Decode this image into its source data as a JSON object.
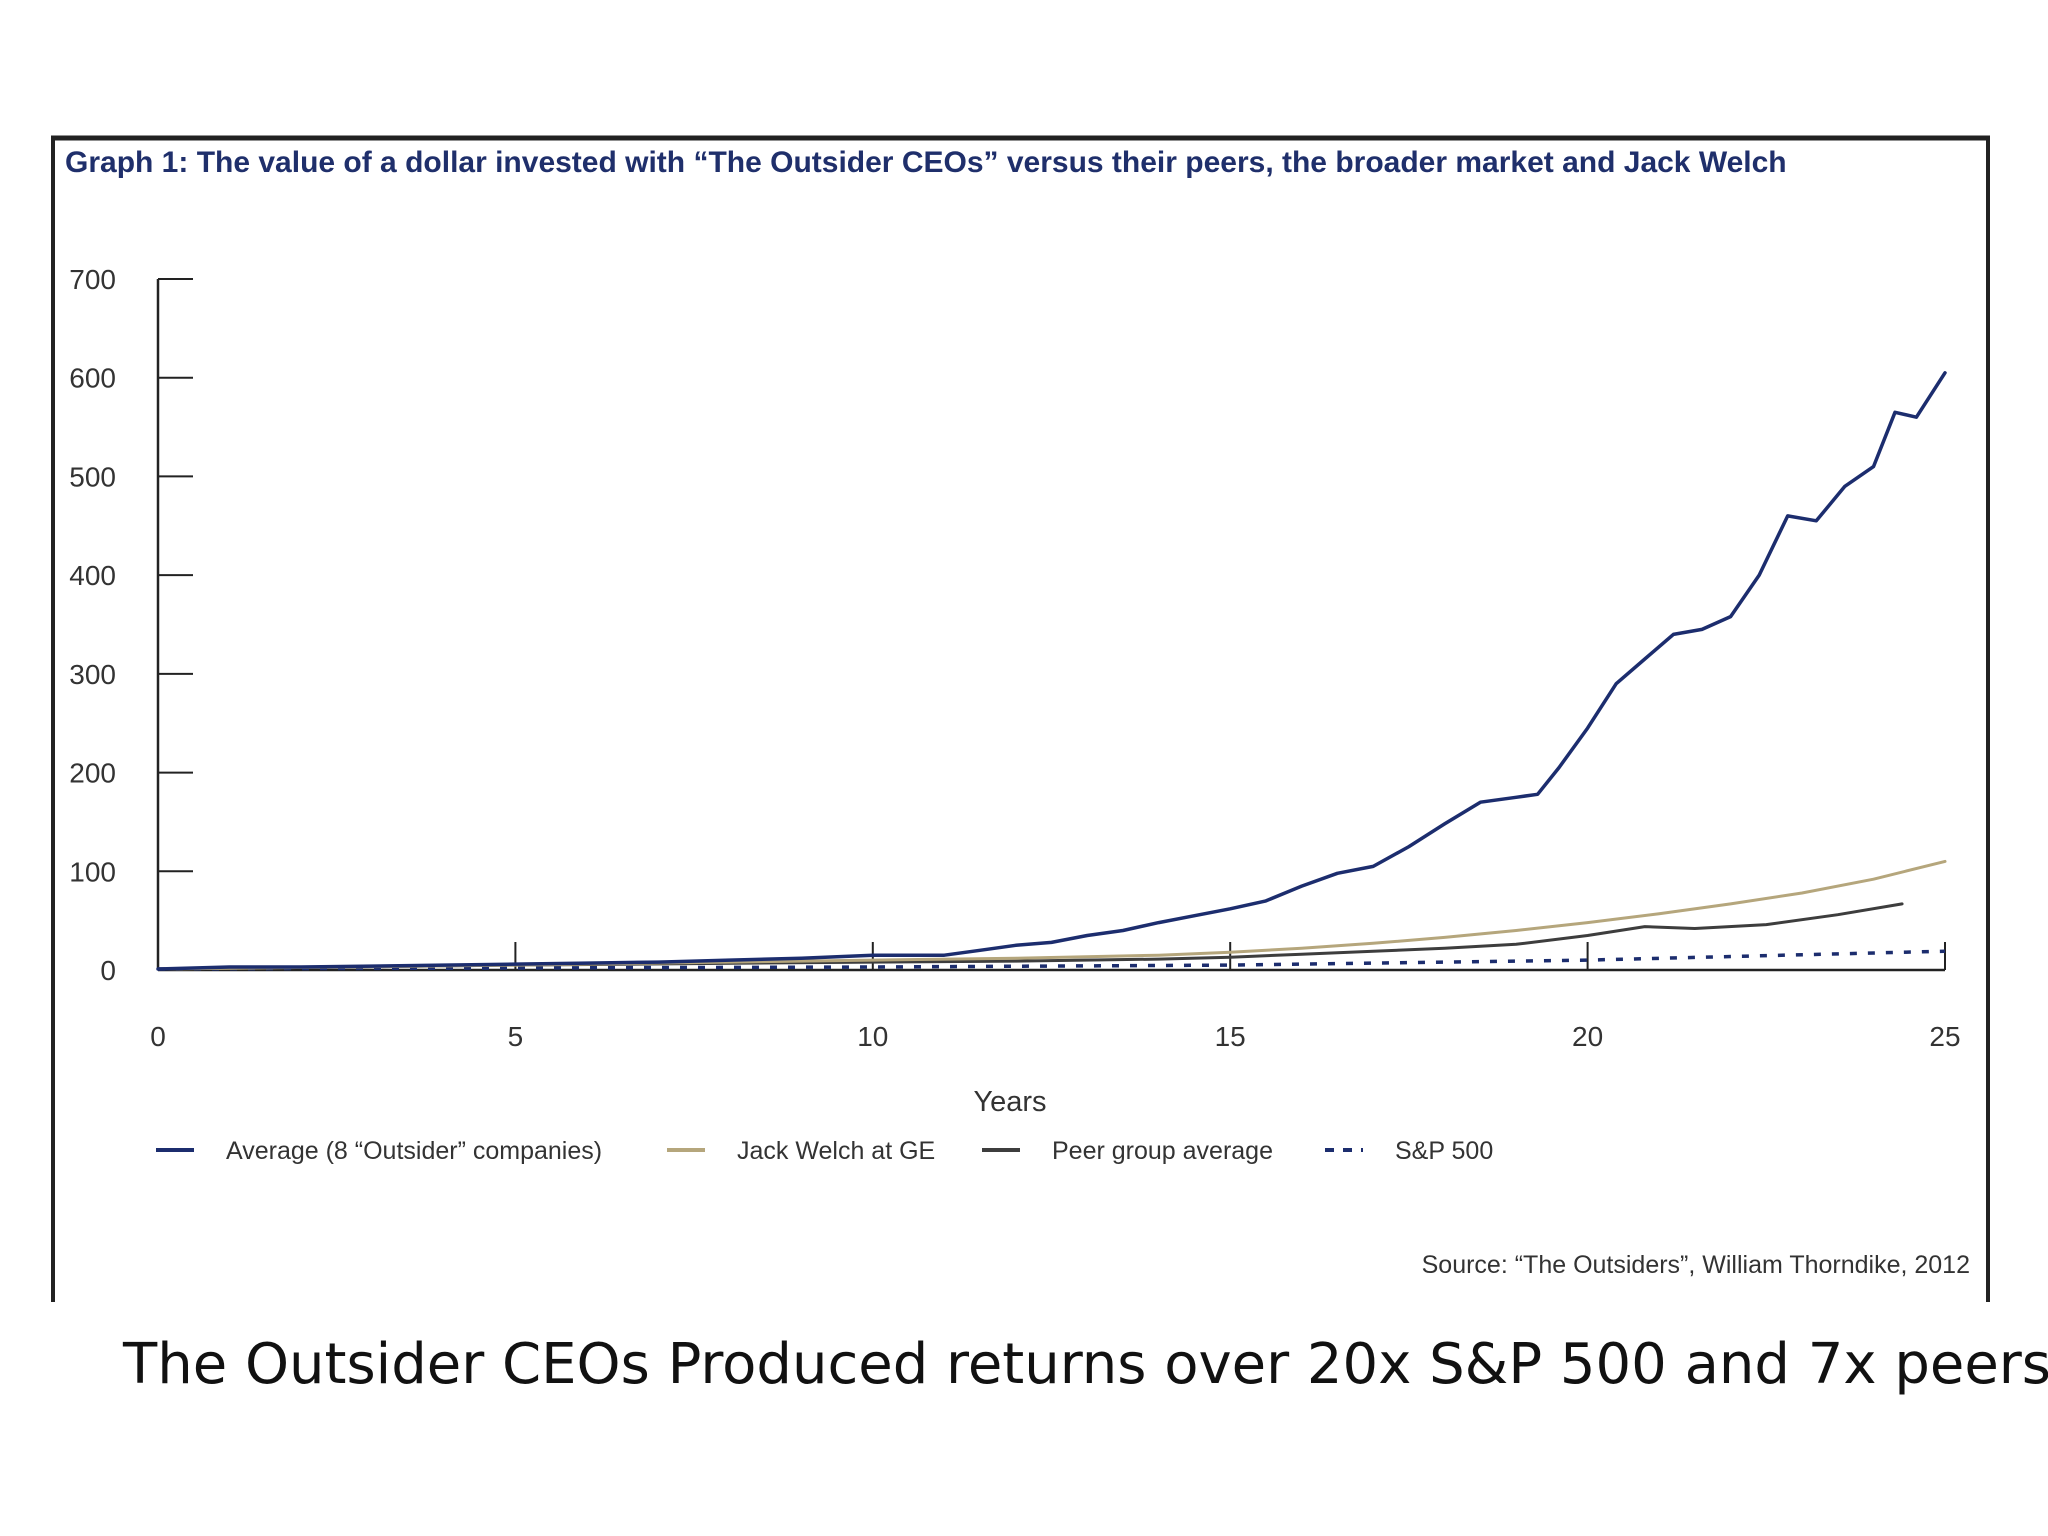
{
  "colors": {
    "outsider": "#1c2d6e",
    "welch": "#b5a67c",
    "peer": "#3d3d3d",
    "sp500": "#1c2d6e",
    "title": "#1f2f6b",
    "axis": "#222222"
  },
  "caption": "The Outsider CEOs Produced returns over 20x S&P 500 and 7x peers",
  "chart_data": {
    "type": "line",
    "title": "Graph 1: The value of a dollar invested with “The Outsider CEOs” versus their peers, the broader market and Jack Welch",
    "xlabel": "Years",
    "ylabel": "",
    "xlim": [
      0,
      25
    ],
    "ylim": [
      0,
      700
    ],
    "xticks": [
      "0",
      "5",
      "10",
      "15",
      "20",
      "25"
    ],
    "yticks": [
      "0",
      "100",
      "200",
      "300",
      "400",
      "500",
      "600",
      "700"
    ],
    "grid": false,
    "legend_position": "bottom",
    "source": "Source: “The Outsiders”, William Thorndike, 2012",
    "series": [
      {
        "name": "Average (8 “Outsider” companies)",
        "style": "solid",
        "x": [
          0,
          1,
          2,
          3,
          4,
          5,
          6,
          7,
          8,
          9,
          10,
          11,
          11.5,
          12,
          12.5,
          13,
          13.5,
          14,
          14.5,
          15,
          15.5,
          16,
          16.5,
          17,
          17.5,
          18,
          18.5,
          19,
          19.3,
          19.6,
          20,
          20.4,
          20.8,
          21.2,
          21.6,
          22,
          22.4,
          22.8,
          23.2,
          23.6,
          24,
          24.3,
          24.6,
          25
        ],
        "values": [
          1,
          3,
          3,
          4,
          5,
          6,
          7,
          8,
          10,
          12,
          15,
          15,
          20,
          25,
          28,
          35,
          40,
          48,
          55,
          62,
          70,
          85,
          98,
          105,
          125,
          148,
          170,
          175,
          178,
          205,
          245,
          290,
          315,
          340,
          345,
          358,
          400,
          460,
          455,
          490,
          510,
          565,
          560,
          605
        ]
      },
      {
        "name": "Jack Welch at GE",
        "style": "solid",
        "x": [
          0,
          5,
          10,
          12,
          14,
          15,
          16,
          17,
          18,
          19,
          20,
          21,
          22,
          23,
          24,
          25
        ],
        "values": [
          1,
          5,
          10,
          12,
          15,
          18,
          22,
          27,
          33,
          40,
          48,
          57,
          67,
          78,
          92,
          110
        ]
      },
      {
        "name": "Peer group average",
        "style": "solid",
        "x": [
          0,
          5,
          10,
          12,
          14,
          15,
          16,
          17,
          18,
          19,
          20,
          20.8,
          21.5,
          22.5,
          23.5,
          24.4
        ],
        "values": [
          1,
          5,
          8,
          9,
          11,
          13,
          16,
          19,
          22,
          26,
          35,
          44,
          42,
          46,
          56,
          67
        ]
      },
      {
        "name": "S&P 500",
        "style": "dashed",
        "x": [
          0,
          5,
          10,
          15,
          20,
          25
        ],
        "values": [
          1,
          2,
          3,
          5,
          10,
          19
        ]
      }
    ]
  }
}
